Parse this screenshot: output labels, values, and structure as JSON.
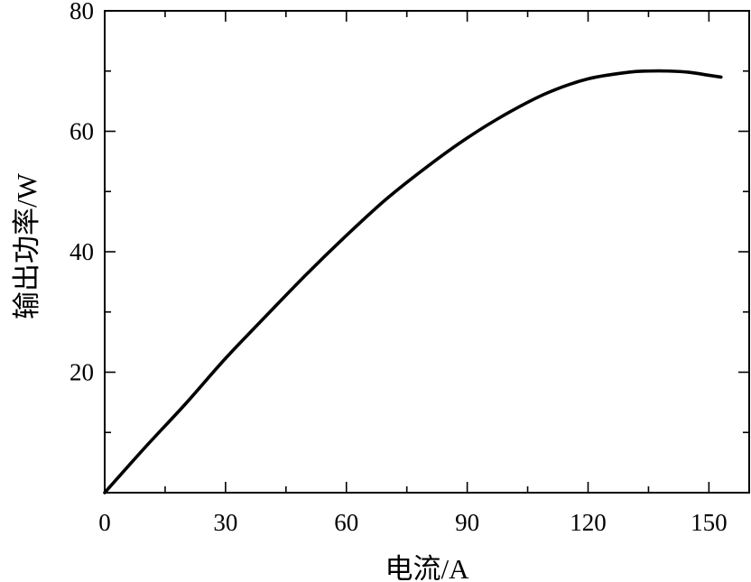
{
  "chart_data": {
    "type": "line",
    "title": "",
    "xlabel": "电流/A",
    "ylabel": "输出功率/W",
    "xlim": [
      0,
      160
    ],
    "ylim": [
      0,
      80
    ],
    "x_ticks": [
      0,
      30,
      60,
      90,
      120,
      150
    ],
    "x_tick_labels": [
      "0",
      "30",
      "60",
      "90",
      "120",
      "150"
    ],
    "x_minor_ticks": [
      15,
      45,
      75,
      105,
      135
    ],
    "y_ticks": [
      20,
      40,
      60,
      80
    ],
    "y_tick_labels": [
      "20",
      "40",
      "60",
      "80"
    ],
    "y_minor_ticks": [
      10,
      30,
      50,
      70
    ],
    "grid": false,
    "series": [
      {
        "x": [
          0,
          10,
          20,
          30,
          40,
          50,
          60,
          70,
          80,
          90,
          100,
          110,
          120,
          130,
          135,
          140,
          145,
          150,
          153
        ],
        "y": [
          0,
          7.5,
          14.7,
          22.3,
          29.3,
          36.2,
          42.7,
          48.8,
          54.1,
          58.9,
          63,
          66.4,
          68.7,
          69.8,
          70,
          70,
          69.8,
          69.3,
          69
        ]
      }
    ],
    "line_color": "#000000"
  }
}
